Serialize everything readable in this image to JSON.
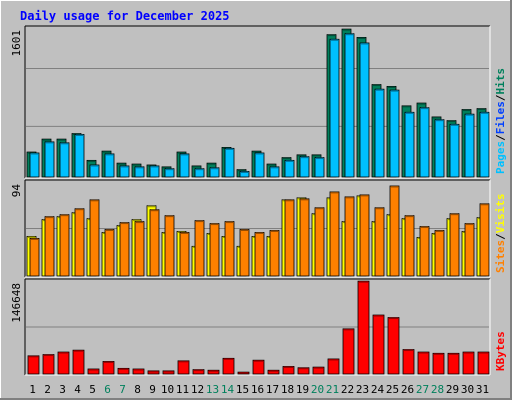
{
  "title": "Daily usage for December 2025",
  "colors": {
    "hits": "#00805c",
    "files": "#0040ff",
    "pages": "#00c0ff",
    "visits": "#ffff00",
    "sites": "#ff8000",
    "kbytes": "#ff0000",
    "title": "#0000ff",
    "weekend_day": "#00805c",
    "weekday": "#000000",
    "panel_bg": "#c0c0c0",
    "grid": "#808080"
  },
  "chart_data": [
    {
      "type": "bar",
      "panel": "top",
      "y_tick_label": "1601",
      "ylim": [
        0,
        1601
      ],
      "legend": [
        {
          "label": "Pages",
          "key": "pages",
          "color": "#00c0ff"
        },
        {
          "label": "/",
          "key": "sep",
          "color": "#000000"
        },
        {
          "label": "Files",
          "key": "files",
          "color": "#0040ff"
        },
        {
          "label": "/",
          "key": "sep",
          "color": "#000000"
        },
        {
          "label": "Hits",
          "key": "hits",
          "color": "#00805c"
        }
      ],
      "categories": [
        "1",
        "2",
        "3",
        "4",
        "5",
        "6",
        "7",
        "8",
        "9",
        "10",
        "11",
        "12",
        "13",
        "14",
        "15",
        "16",
        "17",
        "18",
        "19",
        "20",
        "21",
        "22",
        "23",
        "24",
        "25",
        "26",
        "27",
        "28",
        "29",
        "30",
        "31"
      ],
      "series": [
        {
          "name": "Hits",
          "color": "#00805c",
          "values": [
            270,
            410,
            410,
            470,
            180,
            280,
            150,
            140,
            130,
            110,
            270,
            120,
            150,
            320,
            80,
            280,
            140,
            210,
            240,
            240,
            1540,
            1600,
            1510,
            1000,
            980,
            770,
            800,
            650,
            610,
            730,
            740
          ]
        },
        {
          "name": "Pages",
          "color": "#00c0ff",
          "values": [
            260,
            380,
            370,
            460,
            130,
            250,
            120,
            110,
            120,
            90,
            250,
            90,
            100,
            310,
            60,
            260,
            110,
            180,
            220,
            210,
            1490,
            1550,
            1450,
            950,
            940,
            700,
            750,
            620,
            570,
            680,
            700
          ]
        }
      ]
    },
    {
      "type": "bar",
      "panel": "middle",
      "y_tick_label": "94",
      "ylim": [
        0,
        94
      ],
      "legend": [
        {
          "label": "Sites",
          "key": "sites",
          "color": "#ff8000"
        },
        {
          "label": "/",
          "key": "sep",
          "color": "#000000"
        },
        {
          "label": "Visits",
          "key": "visits",
          "color": "#ffff00"
        }
      ],
      "categories": [
        "1",
        "2",
        "3",
        "4",
        "5",
        "6",
        "7",
        "8",
        "9",
        "10",
        "11",
        "12",
        "13",
        "14",
        "15",
        "16",
        "17",
        "18",
        "19",
        "20",
        "21",
        "22",
        "23",
        "24",
        "25",
        "26",
        "27",
        "28",
        "29",
        "30",
        "31"
      ],
      "series": [
        {
          "name": "Visits",
          "color": "#ffff00",
          "values": [
            40,
            57,
            60,
            64,
            58,
            44,
            51,
            57,
            71,
            44,
            45,
            30,
            43,
            40,
            30,
            40,
            40,
            77,
            79,
            63,
            79,
            55,
            81,
            55,
            62,
            58,
            39,
            43,
            58,
            45,
            59
          ]
        },
        {
          "name": "Sites",
          "color": "#ff8000",
          "values": [
            38,
            60,
            62,
            68,
            77,
            47,
            54,
            55,
            67,
            61,
            44,
            56,
            53,
            55,
            47,
            44,
            46,
            77,
            78,
            69,
            85,
            80,
            82,
            69,
            91,
            61,
            50,
            46,
            63,
            53,
            73
          ]
        }
      ]
    },
    {
      "type": "bar",
      "panel": "bottom",
      "y_tick_label": "146648",
      "ylim": [
        0,
        146648
      ],
      "legend": [
        {
          "label": "KBytes",
          "key": "kbytes",
          "color": "#ff0000"
        }
      ],
      "categories": [
        "1",
        "2",
        "3",
        "4",
        "5",
        "6",
        "7",
        "8",
        "9",
        "10",
        "11",
        "12",
        "13",
        "14",
        "15",
        "16",
        "17",
        "18",
        "19",
        "20",
        "21",
        "22",
        "23",
        "24",
        "25",
        "26",
        "27",
        "28",
        "29",
        "30",
        "31"
      ],
      "series": [
        {
          "name": "KBytes",
          "color": "#ff0000",
          "values": [
            29000,
            31000,
            35000,
            38000,
            8000,
            20000,
            9000,
            8000,
            5000,
            5000,
            21000,
            7000,
            6000,
            25000,
            3000,
            22000,
            6000,
            12000,
            10000,
            11000,
            24000,
            72000,
            148000,
            94000,
            90000,
            39000,
            35000,
            33000,
            33000,
            35000,
            35000
          ]
        }
      ]
    }
  ],
  "x_labels": [
    "1",
    "2",
    "3",
    "4",
    "5",
    "6",
    "7",
    "8",
    "9",
    "10",
    "11",
    "12",
    "13",
    "14",
    "15",
    "16",
    "17",
    "18",
    "19",
    "20",
    "21",
    "22",
    "23",
    "24",
    "25",
    "26",
    "27",
    "28",
    "29",
    "30",
    "31"
  ],
  "weekend_days": [
    6,
    7,
    13,
    14,
    20,
    21,
    27,
    28
  ]
}
